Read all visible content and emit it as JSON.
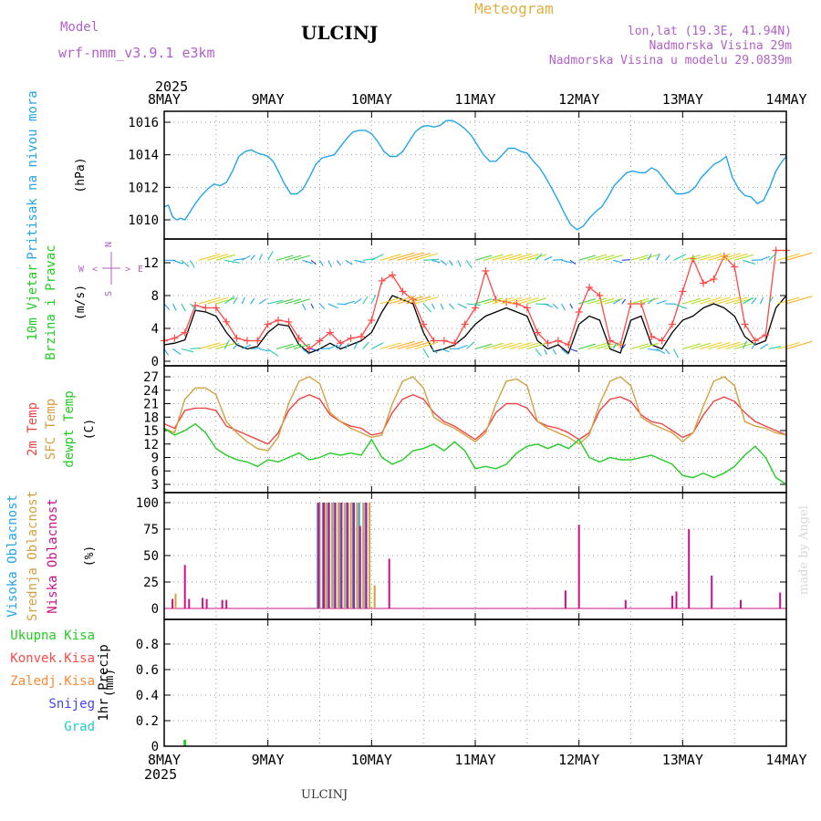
{
  "header": {
    "model_label": "Model",
    "model_name": "wrf-nmm_v3.9.1 e3km",
    "station": "ULCINJ",
    "product": "Meteogram",
    "lonlat": "lon,lat (19.3E, 41.94N)",
    "elevation": "Nadmorska Visina 29m",
    "model_elevation": "Nadmorska Visina u modelu 29.0839m",
    "footer_station": "ULCINJ",
    "credit": "made by Angel"
  },
  "colors": {
    "pressure": "#22a5e8",
    "wind_speed": "#000000",
    "wind_gust": "#ff4848",
    "temp2m": "#ee4444",
    "sfc_temp": "#d4a040",
    "dewpt": "#22cc22",
    "cloud_high": "#22a5e8",
    "cloud_mid": "#d4a040",
    "cloud_low": "#cc1188",
    "precip_total": "#22cc22",
    "precip_conv": "#ff4848",
    "precip_frozen": "#ff8833",
    "snow": "#4444ee",
    "hail": "#22cccc"
  },
  "time_axis": {
    "year": "2025",
    "days": [
      "8MAY",
      "9MAY",
      "10MAY",
      "11MAY",
      "12MAY",
      "13MAY",
      "14MAY"
    ]
  },
  "chart_data": [
    {
      "type": "line",
      "panel": "pressure",
      "ylabel_lines": [
        "Pritisak na nivou mora"
      ],
      "unit": "(hPa)",
      "ylim": [
        1009,
        1017
      ],
      "yticks": [
        1010,
        1012,
        1014,
        1016
      ],
      "x_days": [
        0,
        0.04,
        0.08,
        0.12,
        0.16,
        0.2,
        0.24,
        0.3,
        0.36,
        0.42,
        0.48,
        0.54,
        0.6,
        0.66,
        0.72,
        0.78,
        0.84,
        0.9,
        0.96,
        1.0,
        1.05,
        1.1,
        1.16,
        1.22,
        1.28,
        1.34,
        1.4,
        1.46,
        1.52,
        1.58,
        1.64,
        1.7,
        1.76,
        1.82,
        1.88,
        1.94,
        2.0,
        2.06,
        2.12,
        2.18,
        2.24,
        2.3,
        2.36,
        2.42,
        2.48,
        2.54,
        2.6,
        2.66,
        2.72,
        2.78,
        2.84,
        2.9,
        2.96,
        3.02,
        3.08,
        3.14,
        3.2,
        3.26,
        3.32,
        3.38,
        3.44,
        3.5,
        3.56,
        3.62,
        3.68,
        3.74,
        3.8,
        3.86,
        3.92,
        3.98,
        4.04,
        4.1,
        4.16,
        4.22,
        4.28,
        4.34,
        4.4,
        4.46,
        4.52,
        4.58,
        4.64,
        4.7,
        4.76,
        4.82,
        4.88,
        4.94,
        5.0,
        5.06,
        5.12,
        5.18,
        5.24,
        5.3,
        5.36,
        5.42,
        5.48,
        5.54,
        5.6,
        5.66,
        5.72,
        5.78,
        5.84,
        5.9,
        5.96,
        6.0
      ],
      "series": [
        {
          "values": [
            1010.8,
            1010.9,
            1010.2,
            1010.0,
            1010.1,
            1010.0,
            1010.4,
            1011.0,
            1011.5,
            1011.9,
            1012.2,
            1012.1,
            1012.3,
            1013.0,
            1013.9,
            1014.2,
            1014.3,
            1014.1,
            1014.0,
            1013.9,
            1013.6,
            1013.0,
            1012.2,
            1011.6,
            1011.6,
            1011.9,
            1012.6,
            1013.4,
            1013.8,
            1013.9,
            1014.0,
            1014.5,
            1015.0,
            1015.4,
            1015.5,
            1015.5,
            1015.3,
            1014.8,
            1014.2,
            1013.9,
            1013.9,
            1014.2,
            1014.8,
            1015.4,
            1015.7,
            1015.8,
            1015.7,
            1015.8,
            1016.1,
            1016.1,
            1015.9,
            1015.6,
            1015.2,
            1014.6,
            1014.0,
            1013.6,
            1013.6,
            1014.0,
            1014.4,
            1014.4,
            1014.2,
            1014.1,
            1013.6,
            1013.2,
            1012.6,
            1011.9,
            1011.2,
            1010.4,
            1009.7,
            1009.4,
            1009.6,
            1010.1,
            1010.5,
            1010.8,
            1011.4,
            1012.1,
            1012.5,
            1012.9,
            1013.0,
            1012.9,
            1012.9,
            1013.2,
            1013.0,
            1012.5,
            1012.0,
            1011.6,
            1011.6,
            1011.7,
            1012.0,
            1012.6,
            1013.0,
            1013.4,
            1013.6,
            1013.9,
            1012.6,
            1011.9,
            1011.5,
            1011.4,
            1011.0,
            1011.2,
            1012.0,
            1013.0,
            1013.6,
            1013.9
          ]
        }
      ]
    },
    {
      "type": "line",
      "panel": "wind",
      "ylabel_lines": [
        "10m Vjetar",
        "Brzina i Pravac"
      ],
      "unit": "(m/s)",
      "compass": {
        "n": "N",
        "w": "W",
        "e": "E",
        "s": "S",
        "arrow_left": "<",
        "arrow_right": ">"
      },
      "ylim": [
        -0.5,
        15
      ],
      "yticks": [
        0,
        4,
        8,
        12
      ],
      "x_days": [
        0,
        0.1,
        0.2,
        0.3,
        0.4,
        0.5,
        0.6,
        0.7,
        0.8,
        0.9,
        1.0,
        1.1,
        1.2,
        1.3,
        1.4,
        1.5,
        1.6,
        1.7,
        1.8,
        1.9,
        2.0,
        2.1,
        2.2,
        2.3,
        2.4,
        2.5,
        2.6,
        2.7,
        2.8,
        2.9,
        3.0,
        3.1,
        3.2,
        3.3,
        3.4,
        3.5,
        3.6,
        3.7,
        3.8,
        3.9,
        4.0,
        4.1,
        4.2,
        4.3,
        4.4,
        4.5,
        4.6,
        4.7,
        4.8,
        4.9,
        5.0,
        5.1,
        5.2,
        5.3,
        5.4,
        5.5,
        5.6,
        5.7,
        5.8,
        5.9,
        6.0
      ],
      "series": [
        {
          "values": [
            2.0,
            2.2,
            2.6,
            6.2,
            6.0,
            5.5,
            3.5,
            2.0,
            1.5,
            1.8,
            3.5,
            4.5,
            4.3,
            2.0,
            1.0,
            1.5,
            2.2,
            1.5,
            2.0,
            2.5,
            3.5,
            6.0,
            8.0,
            7.5,
            7.0,
            3.5,
            1.2,
            1.5,
            2.0,
            3.0,
            4.5,
            5.5,
            6.0,
            6.5,
            6.0,
            5.5,
            2.5,
            1.5,
            2.0,
            1.0,
            4.5,
            5.5,
            5.0,
            1.5,
            1.0,
            5.0,
            5.5,
            2.0,
            1.5,
            3.5,
            5.0,
            5.5,
            6.5,
            7.0,
            6.5,
            5.5,
            3.0,
            2.0,
            2.5,
            6.5,
            8.0
          ]
        },
        {
          "values": [
            2.5,
            2.8,
            3.5,
            6.8,
            6.5,
            6.5,
            4.8,
            2.8,
            2.5,
            2.5,
            4.5,
            5.0,
            4.8,
            2.8,
            1.5,
            2.5,
            3.5,
            2.2,
            2.8,
            3.0,
            5.0,
            9.8,
            10.5,
            8.5,
            7.5,
            4.5,
            2.5,
            2.5,
            2.2,
            4.5,
            6.5,
            11.0,
            7.5,
            7.2,
            7.0,
            6.5,
            3.5,
            2.2,
            2.5,
            2.0,
            6.0,
            9.0,
            8.0,
            2.5,
            2.0,
            7.0,
            7.0,
            3.0,
            2.5,
            4.5,
            8.5,
            12.5,
            9.5,
            10.0,
            12.8,
            11.5,
            4.5,
            2.5,
            3.2,
            13.5,
            13.5
          ]
        }
      ]
    },
    {
      "type": "line",
      "panel": "temperature",
      "ylabel_lines": [
        "2m Temp",
        "SFC Temp",
        "dewpt Temp"
      ],
      "unit": "(C)",
      "ylim": [
        2.5,
        28.5
      ],
      "yticks": [
        3,
        6,
        9,
        12,
        15,
        18,
        21,
        24,
        27
      ],
      "x_days": [
        0,
        0.1,
        0.2,
        0.3,
        0.4,
        0.5,
        0.6,
        0.7,
        0.8,
        0.9,
        1.0,
        1.1,
        1.2,
        1.3,
        1.4,
        1.5,
        1.6,
        1.7,
        1.8,
        1.9,
        2.0,
        2.1,
        2.2,
        2.3,
        2.4,
        2.5,
        2.6,
        2.7,
        2.8,
        2.9,
        3.0,
        3.1,
        3.2,
        3.3,
        3.4,
        3.5,
        3.6,
        3.7,
        3.8,
        3.9,
        4.0,
        4.1,
        4.2,
        4.3,
        4.4,
        4.5,
        4.6,
        4.7,
        4.8,
        4.9,
        5.0,
        5.1,
        5.2,
        5.3,
        5.4,
        5.5,
        5.6,
        5.7,
        5.8,
        5.9,
        6.0
      ],
      "series": [
        {
          "name": "2m Temp",
          "values": [
            16.5,
            15.5,
            19.5,
            20.0,
            20.0,
            19.5,
            16.0,
            15.0,
            14.0,
            13.0,
            12.0,
            14.5,
            19.5,
            22.0,
            23.0,
            22.0,
            18.5,
            17.0,
            16.0,
            15.5,
            14.0,
            14.5,
            19.0,
            22.0,
            23.0,
            22.0,
            19.0,
            17.0,
            16.0,
            14.5,
            13.0,
            15.0,
            19.0,
            21.0,
            21.0,
            20.0,
            17.0,
            16.0,
            15.5,
            14.5,
            13.0,
            14.5,
            19.5,
            22.0,
            22.5,
            21.5,
            18.5,
            17.0,
            16.5,
            15.0,
            13.5,
            14.5,
            18.5,
            21.5,
            22.5,
            21.5,
            19.0,
            17.0,
            16.0,
            15.0,
            14.0
          ]
        },
        {
          "name": "SFC Temp",
          "values": [
            15.5,
            14.5,
            22.0,
            24.5,
            24.5,
            23.0,
            17.0,
            14.5,
            12.5,
            11.0,
            10.5,
            13.5,
            21.0,
            26.0,
            27.0,
            25.5,
            19.0,
            17.0,
            15.5,
            14.5,
            13.5,
            14.0,
            21.0,
            26.0,
            27.0,
            24.5,
            18.0,
            16.5,
            15.5,
            14.0,
            12.5,
            14.5,
            21.0,
            26.0,
            26.5,
            25.0,
            17.0,
            15.5,
            14.5,
            13.5,
            12.0,
            14.0,
            21.0,
            26.0,
            27.0,
            25.0,
            18.0,
            16.5,
            15.5,
            14.5,
            12.5,
            14.5,
            20.5,
            26.0,
            27.0,
            25.0,
            17.0,
            16.0,
            15.5,
            14.5,
            14.0
          ]
        },
        {
          "name": "dewpt Temp",
          "values": [
            15.5,
            14.0,
            15.0,
            16.5,
            14.5,
            11.0,
            9.5,
            8.5,
            8.0,
            7.0,
            8.5,
            8.0,
            9.0,
            10.0,
            8.5,
            9.0,
            10.0,
            9.5,
            10.0,
            9.5,
            13.0,
            9.0,
            7.5,
            8.5,
            10.5,
            11.0,
            12.0,
            10.5,
            12.5,
            10.5,
            6.5,
            7.0,
            6.5,
            7.5,
            10.0,
            11.5,
            12.0,
            11.0,
            12.0,
            11.0,
            13.0,
            9.0,
            8.0,
            9.0,
            8.5,
            8.5,
            9.0,
            9.5,
            8.5,
            7.5,
            5.0,
            4.5,
            5.5,
            4.5,
            5.5,
            7.0,
            9.5,
            11.5,
            9.0,
            4.5,
            3.0
          ]
        }
      ]
    },
    {
      "type": "bar",
      "panel": "clouds",
      "ylabel_lines": [
        "Visoka Oblacnost",
        "Srednja Oblacnost",
        "Niska Oblacnost"
      ],
      "unit": "(%)",
      "ylim": [
        0,
        100
      ],
      "yticks": [
        0,
        25,
        50,
        75,
        100
      ],
      "series": [
        {
          "name": "Visoka Oblacnost",
          "x_days": [
            1.48,
            1.53,
            1.58,
            1.64,
            1.7,
            1.76,
            1.82,
            1.88,
            1.94
          ],
          "values": [
            100,
            100,
            100,
            100,
            100,
            100,
            100,
            100,
            100
          ]
        },
        {
          "name": "Srednja Oblacnost",
          "x_days": [
            0.11,
            1.5,
            1.56,
            1.62,
            1.68,
            1.74,
            1.8,
            1.86,
            1.92,
            1.98,
            2.03
          ],
          "values": [
            14,
            100,
            100,
            100,
            100,
            100,
            100,
            100,
            100,
            100,
            22
          ]
        },
        {
          "name": "Niska Oblacnost",
          "x_days": [
            0.08,
            0.2,
            0.24,
            0.37,
            0.41,
            0.56,
            0.6,
            1.49,
            1.54,
            1.59,
            1.65,
            1.71,
            1.77,
            1.83,
            1.89,
            1.95,
            2.17,
            3.87,
            4.0,
            4.45,
            4.9,
            4.94,
            5.06,
            5.28,
            5.56,
            5.94
          ],
          "values": [
            9,
            41,
            9,
            10,
            9,
            8,
            8,
            100,
            100,
            100,
            100,
            100,
            100,
            100,
            78,
            100,
            47,
            17,
            79,
            8,
            12,
            16,
            75,
            31,
            8,
            15
          ]
        }
      ]
    },
    {
      "type": "bar",
      "panel": "precip",
      "ylabel_lines": [
        "1hr Precip"
      ],
      "unit": "(mm)",
      "legend": [
        "Ukupna Kisa",
        "Konvek.Kisa",
        "Zaledj.Kisa",
        "Snijeg",
        "Grad"
      ],
      "ylim": [
        0,
        1.0
      ],
      "yticks": [
        0,
        0.2,
        0.4,
        0.6,
        0.8
      ],
      "series": [
        {
          "name": "Ukupna Kisa",
          "x_days": [
            0.2
          ],
          "values": [
            0.05
          ]
        }
      ]
    }
  ]
}
